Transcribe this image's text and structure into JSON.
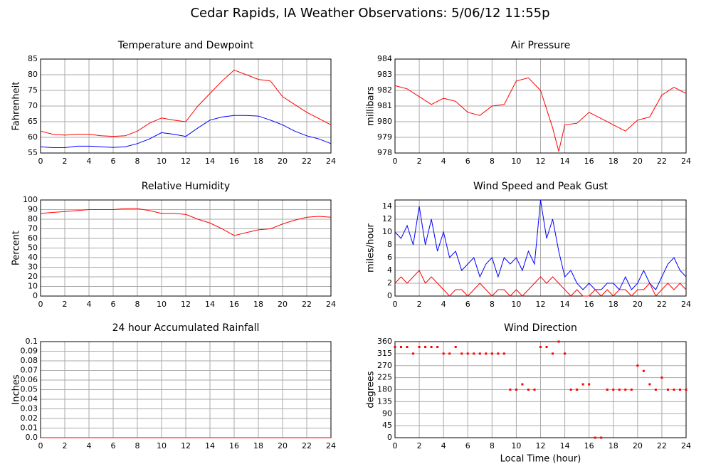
{
  "title": "Cedar Rapids, IA Weather Observations: 5/06/12 11:55p",
  "chart_data": [
    {
      "type": "line",
      "title": "Temperature and Dewpoint",
      "ylabel": "Fahrenheit",
      "x": [
        0,
        1,
        2,
        3,
        4,
        5,
        6,
        7,
        8,
        9,
        10,
        11,
        12,
        13,
        14,
        15,
        16,
        17,
        18,
        19,
        20,
        21,
        22,
        23,
        24
      ],
      "series": [
        {
          "color": "#ff0000",
          "values": [
            62,
            61,
            60.7,
            61,
            61,
            60.5,
            60.3,
            60.5,
            62,
            64.5,
            66.2,
            65.5,
            65,
            70,
            74,
            78,
            81.5,
            80,
            78.5,
            78,
            73,
            70.5,
            68,
            66,
            64
          ]
        },
        {
          "color": "#0000ff",
          "values": [
            57,
            56.7,
            56.7,
            57.2,
            57.2,
            57,
            56.8,
            57,
            58,
            59.5,
            61.5,
            61,
            60.3,
            63,
            65.5,
            66.5,
            67,
            67,
            66.8,
            65.5,
            64,
            62,
            60.5,
            59.5,
            58
          ]
        }
      ],
      "xlim": [
        0,
        24
      ],
      "xticks": [
        0,
        2,
        4,
        6,
        8,
        10,
        12,
        14,
        16,
        18,
        20,
        22,
        24
      ],
      "ylim": [
        55,
        85
      ],
      "yticks": [
        55,
        60,
        65,
        70,
        75,
        80,
        85
      ],
      "grid": true
    },
    {
      "type": "line",
      "title": "Air Pressure",
      "ylabel": "millibars",
      "x": [
        0,
        1,
        2,
        3,
        4,
        5,
        6,
        7,
        8,
        9,
        10,
        11,
        12,
        13,
        13.5,
        14,
        15,
        16,
        17,
        18,
        19,
        20,
        21,
        22,
        23,
        24
      ],
      "series": [
        {
          "color": "#ff0000",
          "values": [
            982.3,
            982.1,
            981.6,
            981.1,
            981.5,
            981.3,
            980.6,
            980.4,
            981.0,
            981.1,
            982.6,
            982.8,
            982.0,
            979.6,
            978.1,
            979.8,
            979.9,
            980.6,
            980.2,
            979.8,
            979.4,
            980.1,
            980.3,
            981.7,
            982.2,
            981.8
          ]
        }
      ],
      "xlim": [
        0,
        24
      ],
      "xticks": [
        0,
        2,
        4,
        6,
        8,
        10,
        12,
        14,
        16,
        18,
        20,
        22,
        24
      ],
      "ylim": [
        978,
        984
      ],
      "yticks": [
        978,
        979,
        980,
        981,
        982,
        983,
        984
      ],
      "grid": true
    },
    {
      "type": "line",
      "title": "Relative Humidity",
      "ylabel": "Percent",
      "x": [
        0,
        1,
        2,
        3,
        4,
        5,
        6,
        7,
        8,
        9,
        10,
        11,
        12,
        13,
        14,
        15,
        16,
        17,
        18,
        19,
        20,
        21,
        22,
        23,
        24
      ],
      "series": [
        {
          "color": "#ff0000",
          "values": [
            86,
            87,
            88,
            89,
            90,
            90,
            90,
            91,
            91,
            89,
            86,
            86,
            85,
            80,
            76,
            70,
            63,
            66,
            69,
            70,
            75,
            79,
            82,
            83,
            82
          ]
        }
      ],
      "xlim": [
        0,
        24
      ],
      "xticks": [
        0,
        2,
        4,
        6,
        8,
        10,
        12,
        14,
        16,
        18,
        20,
        22,
        24
      ],
      "ylim": [
        0,
        100
      ],
      "yticks": [
        0,
        10,
        20,
        30,
        40,
        50,
        60,
        70,
        80,
        90,
        100
      ],
      "grid": true
    },
    {
      "type": "line",
      "title": "Wind Speed and Peak Gust",
      "ylabel": "miles/hour",
      "x": [
        0,
        0.5,
        1,
        1.5,
        2,
        2.5,
        3,
        3.5,
        4,
        4.5,
        5,
        5.5,
        6,
        6.5,
        7,
        7.5,
        8,
        8.5,
        9,
        9.5,
        10,
        10.5,
        11,
        11.5,
        12,
        12.5,
        13,
        13.5,
        14,
        14.5,
        15,
        15.5,
        16,
        16.5,
        17,
        17.5,
        18,
        18.5,
        19,
        19.5,
        20,
        20.5,
        21,
        21.5,
        22,
        22.5,
        23,
        23.5,
        24
      ],
      "series": [
        {
          "color": "#0000ff",
          "values": [
            10,
            9,
            11,
            8,
            14,
            8,
            12,
            7,
            10,
            6,
            7,
            4,
            5,
            6,
            3,
            5,
            6,
            3,
            6,
            5,
            6,
            4,
            7,
            5,
            15,
            9,
            12,
            7,
            3,
            4,
            2,
            1,
            2,
            1,
            1,
            2,
            2,
            1,
            3,
            1,
            2,
            4,
            2,
            1,
            3,
            5,
            6,
            4,
            3
          ]
        },
        {
          "color": "#ff0000",
          "values": [
            2,
            3,
            2,
            3,
            4,
            2,
            3,
            2,
            1,
            0,
            1,
            1,
            0,
            1,
            2,
            1,
            0,
            1,
            1,
            0,
            1,
            0,
            1,
            2,
            3,
            2,
            3,
            2,
            1,
            0,
            1,
            0,
            0,
            1,
            0,
            1,
            0,
            1,
            1,
            0,
            1,
            1,
            2,
            0,
            1,
            2,
            1,
            2,
            1
          ]
        }
      ],
      "xlim": [
        0,
        24
      ],
      "xticks": [
        0,
        2,
        4,
        6,
        8,
        10,
        12,
        14,
        16,
        18,
        20,
        22,
        24
      ],
      "ylim": [
        0,
        15
      ],
      "yticks": [
        0,
        2,
        4,
        6,
        8,
        10,
        12,
        14
      ],
      "grid": true
    },
    {
      "type": "line",
      "title": "24 hour Accumulated Rainfall",
      "ylabel": "Inches",
      "x": [
        0,
        24
      ],
      "series": [
        {
          "color": "#ff0000",
          "values": [
            0,
            0
          ]
        }
      ],
      "xlim": [
        0,
        24
      ],
      "xticks": [
        0,
        2,
        4,
        6,
        8,
        10,
        12,
        14,
        16,
        18,
        20,
        22,
        24
      ],
      "ylim": [
        0,
        0.1
      ],
      "yticks": [
        {
          "value": 0,
          "label": "0.0"
        },
        0.01,
        0.02,
        0.03,
        0.04,
        0.05,
        0.06,
        0.07,
        0.08,
        0.09,
        0.1
      ],
      "grid": true
    },
    {
      "type": "scatter",
      "title": "Wind Direction",
      "ylabel": "degrees",
      "xlabel": "Local Time (hour)",
      "x": [
        0,
        0.5,
        1,
        1.5,
        2,
        2.5,
        3,
        3.5,
        4,
        4.5,
        5,
        5.5,
        6,
        6.5,
        7,
        7.5,
        8,
        8.5,
        9,
        9.5,
        10,
        10.5,
        11,
        11.5,
        12,
        12.5,
        13,
        13.5,
        14,
        14.5,
        15,
        15.5,
        16,
        16.5,
        17,
        17.5,
        18,
        18.5,
        19,
        19.5,
        20,
        20.5,
        21,
        21.5,
        22,
        22.5,
        23,
        23.5,
        24
      ],
      "values": [
        340,
        340,
        340,
        315,
        340,
        340,
        340,
        340,
        315,
        315,
        340,
        315,
        315,
        315,
        315,
        315,
        315,
        315,
        315,
        180,
        180,
        200,
        180,
        180,
        340,
        340,
        315,
        360,
        315,
        180,
        180,
        200,
        200,
        0,
        0,
        180,
        180,
        180,
        180,
        180,
        270,
        250,
        200,
        180,
        225,
        180,
        180,
        180,
        180
      ],
      "color": "#ff0000",
      "xlim": [
        0,
        24
      ],
      "xticks": [
        0,
        2,
        4,
        6,
        8,
        10,
        12,
        14,
        16,
        18,
        20,
        22,
        24
      ],
      "ylim": [
        0,
        360
      ],
      "yticks": [
        0,
        45,
        90,
        135,
        180,
        225,
        270,
        315,
        360
      ],
      "grid": true
    }
  ]
}
